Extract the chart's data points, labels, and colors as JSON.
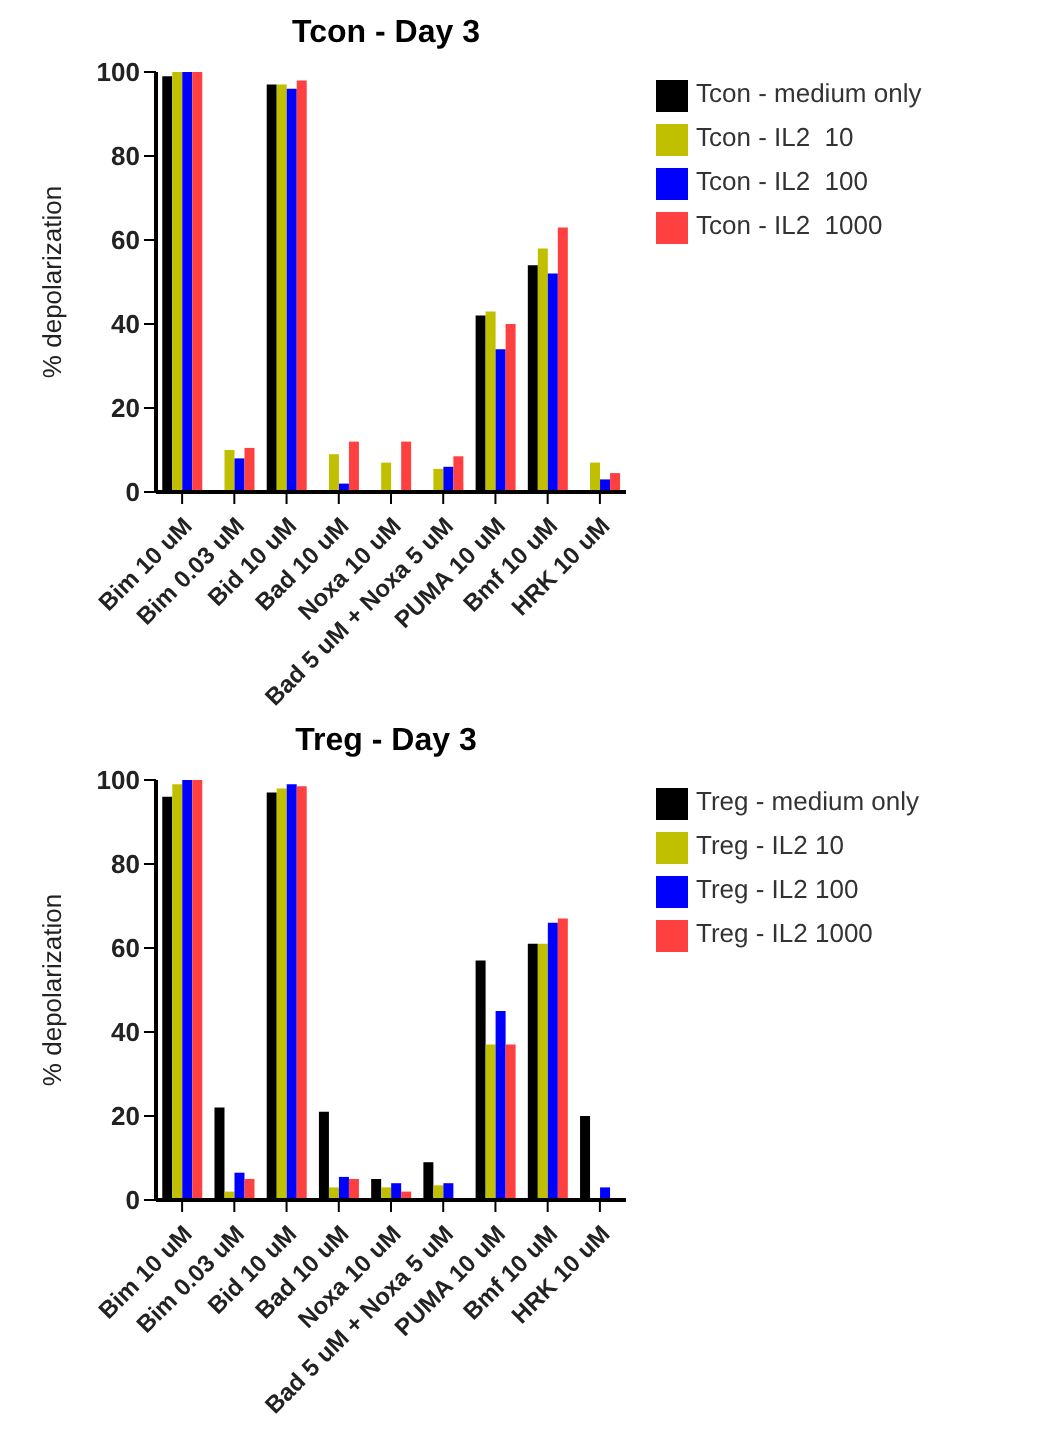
{
  "chart_data": [
    {
      "type": "bar",
      "title": "Tcon - Day 3",
      "ylabel": "% depolarization",
      "categories": [
        "Bim 10 uM",
        "Bim 0.03 uM",
        "Bid 10 uM",
        "Bad 10 uM",
        "Noxa 10 uM",
        "Bad 5 uM + Noxa 5 uM",
        "PUMA 10 uM",
        "Bmf 10 uM",
        "HRK 10 uM"
      ],
      "series": [
        {
          "name": "Tcon - medium only",
          "color": "#000000",
          "values": [
            99,
            0,
            97,
            0,
            0,
            0,
            42,
            54,
            0
          ]
        },
        {
          "name": "Tcon - IL2  10",
          "color": "#c0c000",
          "values": [
            100,
            10,
            97,
            9,
            7,
            5.5,
            43,
            58,
            7
          ]
        },
        {
          "name": "Tcon - IL2  100",
          "color": "#0000ff",
          "values": [
            100,
            8,
            96,
            2,
            0,
            6,
            34,
            52,
            3
          ]
        },
        {
          "name": "Tcon - IL2  1000",
          "color": "#ff4040",
          "values": [
            100,
            10.5,
            98,
            12,
            12,
            8.5,
            40,
            63,
            4.5
          ]
        }
      ],
      "ylim": [
        0,
        100
      ],
      "yticks": [
        0,
        20,
        40,
        60,
        80,
        100
      ],
      "grid": false,
      "legend": "top right"
    },
    {
      "type": "bar",
      "title": "Treg - Day 3",
      "ylabel": "% depolarization",
      "categories": [
        "Bim 10 uM",
        "Bim 0.03 uM",
        "Bid 10 uM",
        "Bad 10 uM",
        "Noxa 10 uM",
        "Bad 5 uM + Noxa 5 uM",
        "PUMA 10 uM",
        "Bmf 10 uM",
        "HRK 10 uM"
      ],
      "series": [
        {
          "name": "Treg - medium only",
          "color": "#000000",
          "values": [
            96,
            22,
            97,
            21,
            5,
            9,
            57,
            61,
            20
          ]
        },
        {
          "name": "Treg - IL2 10",
          "color": "#c0c000",
          "values": [
            99,
            2,
            98,
            3,
            3,
            3.5,
            37,
            61,
            0
          ]
        },
        {
          "name": "Treg - IL2 100",
          "color": "#0000ff",
          "values": [
            100,
            6.5,
            99,
            5.5,
            4,
            4,
            45,
            66,
            3
          ]
        },
        {
          "name": "Treg - IL2 1000",
          "color": "#ff4040",
          "values": [
            100,
            5,
            98.5,
            5,
            2,
            0,
            37,
            67,
            0
          ]
        }
      ],
      "ylim": [
        0,
        100
      ],
      "yticks": [
        0,
        20,
        40,
        60,
        80,
        100
      ],
      "grid": false,
      "legend": "top right"
    }
  ]
}
